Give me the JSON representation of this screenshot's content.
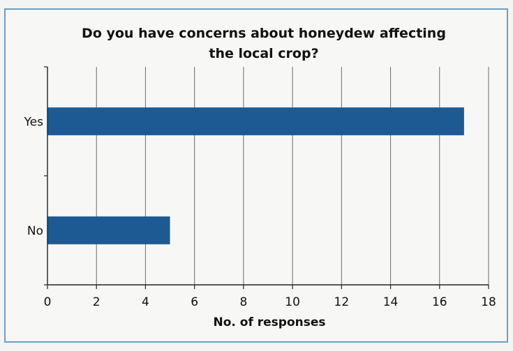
{
  "chart_data": {
    "type": "bar",
    "orientation": "horizontal",
    "title_lines": [
      "Do you have concerns about honeydew affecting",
      "the local crop?"
    ],
    "categories": [
      "Yes",
      "No"
    ],
    "values": [
      17,
      5
    ],
    "xlabel": "No. of responses",
    "ylabel": "",
    "xlim": [
      0,
      18
    ],
    "xticks": [
      "0",
      "2",
      "4",
      "6",
      "8",
      "10",
      "12",
      "14",
      "16",
      "18"
    ],
    "grid": "vertical",
    "legend": "none",
    "bar_color": "#1d5a93"
  }
}
